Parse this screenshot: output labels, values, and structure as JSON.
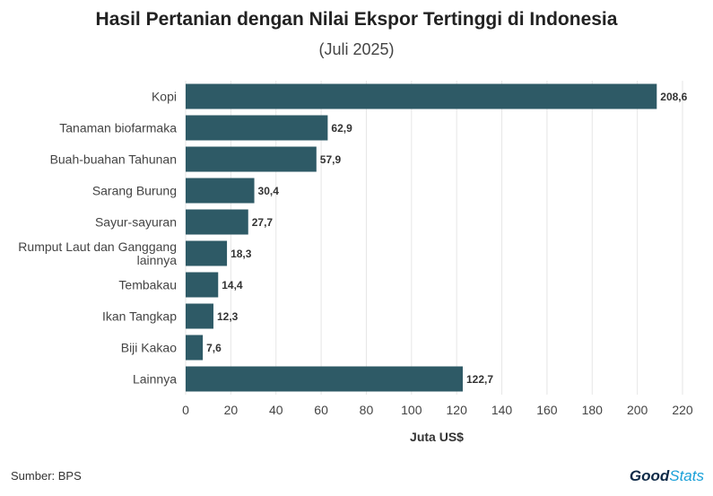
{
  "header": {
    "title": "Hasil Pertanian dengan Nilai Ekspor Tertinggi di Indonesia",
    "subtitle": "(Juli 2025)"
  },
  "footer": {
    "source": "Sumber: BPS",
    "brand_part1": "Good",
    "brand_part2": "Stats"
  },
  "colors": {
    "bar": "#2e5a66",
    "grid": "#e6e6e6",
    "text": "#444444"
  },
  "chart_data": {
    "type": "bar",
    "orientation": "horizontal",
    "title": "Hasil Pertanian dengan Nilai Ekspor Tertinggi di Indonesia",
    "subtitle": "(Juli 2025)",
    "xlabel": "Juta US$",
    "ylabel": "",
    "xlim": [
      0,
      220
    ],
    "xticks": [
      0,
      20,
      40,
      60,
      80,
      100,
      120,
      140,
      160,
      180,
      200,
      220
    ],
    "grid": true,
    "categories": [
      [
        "Kopi"
      ],
      [
        "Tanaman biofarmaka"
      ],
      [
        "Buah-buahan Tahunan"
      ],
      [
        "Sarang Burung"
      ],
      [
        "Sayur-sayuran"
      ],
      [
        "Rumput Laut dan Ganggang",
        "lainnya"
      ],
      [
        "Tembakau"
      ],
      [
        "Ikan Tangkap"
      ],
      [
        "Biji Kakao"
      ],
      [
        "Lainnya"
      ]
    ],
    "values": [
      208.6,
      62.9,
      57.9,
      30.4,
      27.7,
      18.3,
      14.4,
      12.3,
      7.6,
      122.7
    ],
    "value_labels": [
      "208,6",
      "62,9",
      "57,9",
      "30,4",
      "27,7",
      "18,3",
      "14,4",
      "12,3",
      "7,6",
      "122,7"
    ]
  }
}
